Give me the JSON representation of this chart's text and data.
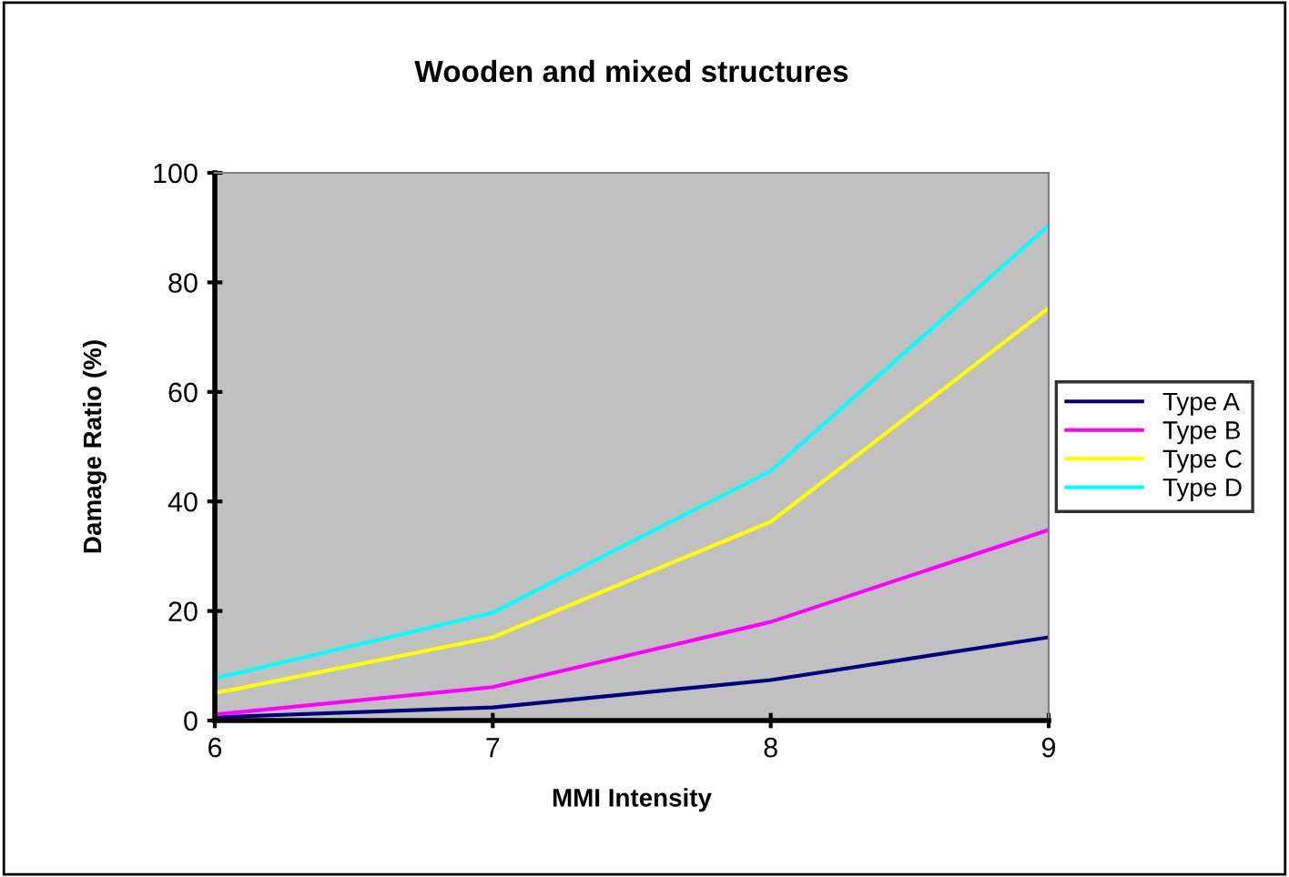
{
  "chart_data": {
    "type": "line",
    "title": "Wooden and mixed structures",
    "xlabel": "MMI Intensity",
    "ylabel": "Damage Ratio (%)",
    "x": [
      6,
      7,
      8,
      9
    ],
    "xlim": [
      6,
      9
    ],
    "xticks": [
      6,
      7,
      8,
      9
    ],
    "ylim": [
      0,
      100
    ],
    "yticks": [
      0,
      20,
      40,
      60,
      80,
      100
    ],
    "grid": false,
    "legend": "right",
    "marker": "none",
    "line_style": "solid",
    "series": [
      {
        "name": "Type A",
        "color": "#000080",
        "values": [
          0.6,
          2.4,
          7.4,
          15.2
        ]
      },
      {
        "name": "Type B",
        "color": "#ff00ff",
        "values": [
          1.1,
          6.1,
          18,
          34.8
        ]
      },
      {
        "name": "Type C",
        "color": "#ffff00",
        "values": [
          5,
          15.2,
          36.3,
          75.3
        ]
      },
      {
        "name": "Type D",
        "color": "#00ffff",
        "values": [
          7.7,
          19.7,
          45.6,
          90.4
        ]
      }
    ]
  }
}
